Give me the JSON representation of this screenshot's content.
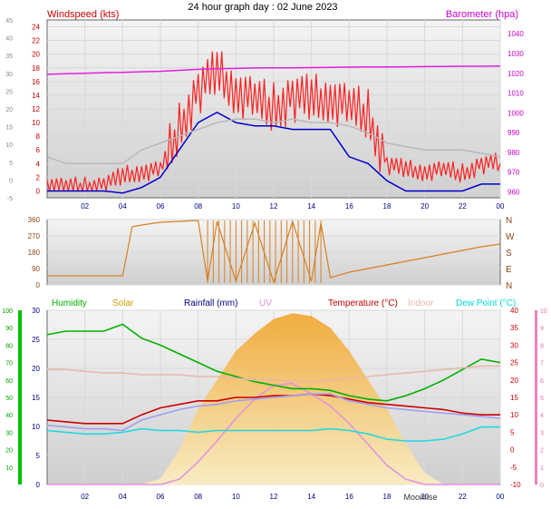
{
  "chart_data": [
    {
      "type": "line",
      "title": "24 hour graph day : 02 June 2023",
      "left_label": "Windspeed (kts)",
      "right_label": "Barometer (hpa)",
      "x_tick_labels": [
        "02",
        "04",
        "06",
        "08",
        "10",
        "12",
        "14",
        "16",
        "18",
        "20",
        "22",
        "00"
      ],
      "y_left_ticks": [
        0,
        2,
        4,
        6,
        8,
        10,
        12,
        14,
        16,
        18,
        20,
        22,
        24
      ],
      "y_left_ticks_outer": [
        -5,
        0,
        5,
        10,
        15,
        20,
        25,
        30,
        35,
        40,
        45
      ],
      "y_right_ticks": [
        960,
        970,
        980,
        990,
        1000,
        1010,
        1020,
        1030,
        1040
      ],
      "ylim_left": [
        -1,
        25
      ],
      "ylim_right": [
        957,
        1047
      ],
      "x_hours": [
        0,
        1,
        2,
        3,
        4,
        5,
        6,
        7,
        8,
        9,
        10,
        11,
        12,
        13,
        14,
        15,
        16,
        17,
        18,
        19,
        20,
        21,
        22,
        23,
        24
      ],
      "colors": {
        "gust": "#ff2020",
        "average": "#0000cc",
        "barometer": "#e020e0",
        "direction_avg": "#b8b8b8"
      },
      "series": [
        {
          "name": "gust",
          "values": [
            1,
            0.5,
            0.5,
            1,
            2,
            3,
            3,
            9,
            15,
            17,
            15,
            13,
            12,
            14,
            13,
            14,
            12,
            11,
            4,
            3,
            3,
            3,
            2.5,
            4,
            4
          ]
        },
        {
          "name": "average",
          "values": [
            0,
            0,
            0,
            0,
            -0.3,
            0.5,
            2,
            6,
            10,
            11.5,
            10,
            9.5,
            9.5,
            9,
            9,
            9,
            5,
            4,
            1.5,
            0,
            0,
            0,
            0,
            1,
            1
          ]
        },
        {
          "name": "barometer",
          "values": [
            1019.5,
            1019.8,
            1020,
            1020.3,
            1020.5,
            1020.8,
            1021,
            1021.5,
            1022,
            1022.3,
            1022.5,
            1022.7,
            1022.8,
            1022.8,
            1022.9,
            1023,
            1023.1,
            1023.2,
            1023.2,
            1023.3,
            1023.4,
            1023.5,
            1023.6,
            1023.6,
            1023.7
          ]
        },
        {
          "name": "grey",
          "values": [
            5,
            4,
            4,
            4,
            4,
            6,
            7,
            8,
            9,
            10,
            10.5,
            10.5,
            10,
            10.5,
            10,
            10,
            9.5,
            8.5,
            7,
            6.5,
            6,
            6,
            6,
            5.5,
            5
          ]
        }
      ]
    },
    {
      "type": "scatter",
      "y_left_ticks": [
        0,
        90,
        180,
        270,
        360
      ],
      "compass_labels": [
        "N",
        "W",
        "S",
        "E",
        "N"
      ],
      "ylim": [
        0,
        360
      ],
      "color": "#d87f20",
      "x_hours": [
        0,
        1,
        2,
        3,
        4,
        4.5,
        5,
        6,
        7,
        8,
        8.5,
        9,
        10,
        11,
        12,
        13,
        14,
        14.5,
        15,
        16,
        17,
        18,
        19,
        20,
        21,
        22,
        23,
        24
      ],
      "values": [
        50,
        50,
        50,
        50,
        50,
        320,
        330,
        345,
        350,
        355,
        20,
        350,
        20,
        340,
        15,
        350,
        20,
        340,
        40,
        70,
        90,
        110,
        130,
        150,
        170,
        190,
        210,
        225
      ]
    },
    {
      "type": "line",
      "legend": [
        "Humidity",
        "Solar",
        "Rainfall (mm)",
        "UV",
        "Temperature (°C)",
        "Indoor",
        "Dew Point (°C)"
      ],
      "legend_colors": [
        "#00b000",
        "#c8a000",
        "#000080",
        "#e090e0",
        "#c00000",
        "#e8b8a8",
        "#00d8d8"
      ],
      "x_tick_labels": [
        "02",
        "04",
        "06",
        "08",
        "10",
        "12",
        "14",
        "16",
        "18",
        "20",
        "22",
        "00"
      ],
      "moon_label": "Moonrise",
      "y_humidity_ticks": [
        10,
        20,
        30,
        40,
        50,
        60,
        70,
        80,
        90,
        100
      ],
      "y_rain_ticks": [
        0,
        5,
        10,
        15,
        20,
        25,
        30
      ],
      "y_temp_ticks": [
        -10,
        -5,
        0,
        5,
        10,
        15,
        20,
        25,
        30,
        35,
        40
      ],
      "y_uv_ticks": [
        0,
        1,
        2,
        3,
        4,
        5,
        6,
        7,
        8,
        9,
        10
      ],
      "ylim_humidity": [
        0,
        100
      ],
      "ylim_temp": [
        -10,
        40
      ],
      "x_hours": [
        0,
        1,
        2,
        3,
        4,
        5,
        6,
        7,
        8,
        9,
        10,
        11,
        12,
        13,
        14,
        15,
        16,
        17,
        18,
        19,
        20,
        21,
        22,
        23,
        24
      ],
      "series": [
        {
          "name": "Humidity",
          "values": [
            86,
            88,
            88,
            88,
            92,
            84,
            80,
            75,
            70,
            65,
            62,
            59,
            57,
            55,
            55,
            54,
            51,
            49,
            48,
            51,
            55,
            60,
            66,
            72,
            70
          ]
        },
        {
          "name": "Temperature (°C)",
          "values": [
            8.5,
            8,
            7.5,
            7.5,
            7.5,
            10,
            12,
            13,
            14,
            14,
            15,
            15,
            15.5,
            15.5,
            16,
            15.5,
            14.5,
            13.5,
            13,
            12.5,
            12,
            11.5,
            10.5,
            10,
            10
          ]
        },
        {
          "name": "Indoor",
          "values": [
            23,
            23,
            22.5,
            22,
            22,
            21.5,
            21.5,
            21.5,
            21,
            21,
            20.5,
            20,
            20,
            19.5,
            19.5,
            20,
            20.5,
            21,
            21.5,
            22,
            22.5,
            23,
            23.5,
            24,
            24
          ]
        },
        {
          "name": "Dew Point (°C)",
          "values": [
            5.5,
            5,
            4.5,
            4.5,
            5,
            6,
            5.5,
            5.5,
            5,
            5.5,
            5.5,
            5.5,
            5.5,
            5.5,
            5.5,
            6,
            5.5,
            4.5,
            3,
            2.5,
            2.5,
            3,
            4.5,
            6.5,
            6.5
          ]
        },
        {
          "name": "Solar_temp",
          "values": [
            7,
            6.5,
            6,
            6,
            5.5,
            8.5,
            10,
            11.5,
            12.5,
            13,
            14,
            14.5,
            15,
            15.5,
            16,
            16,
            14,
            13,
            12,
            11.5,
            11,
            10.5,
            10,
            9.5,
            9
          ]
        }
      ],
      "solar_envelope": [
        0,
        0,
        0,
        0,
        0,
        0,
        1,
        6,
        13,
        18,
        23,
        26,
        28.5,
        29.5,
        29,
        27,
        23,
        18,
        13,
        7,
        2,
        0,
        0,
        0,
        0
      ],
      "uv_values": [
        0,
        0,
        0,
        0,
        0,
        0,
        0,
        0.3,
        1.3,
        2.5,
        3.8,
        4.9,
        5.7,
        5.8,
        5.2,
        4.5,
        3.5,
        2.3,
        1.1,
        0.3,
        0,
        0,
        0,
        0,
        0
      ]
    }
  ]
}
